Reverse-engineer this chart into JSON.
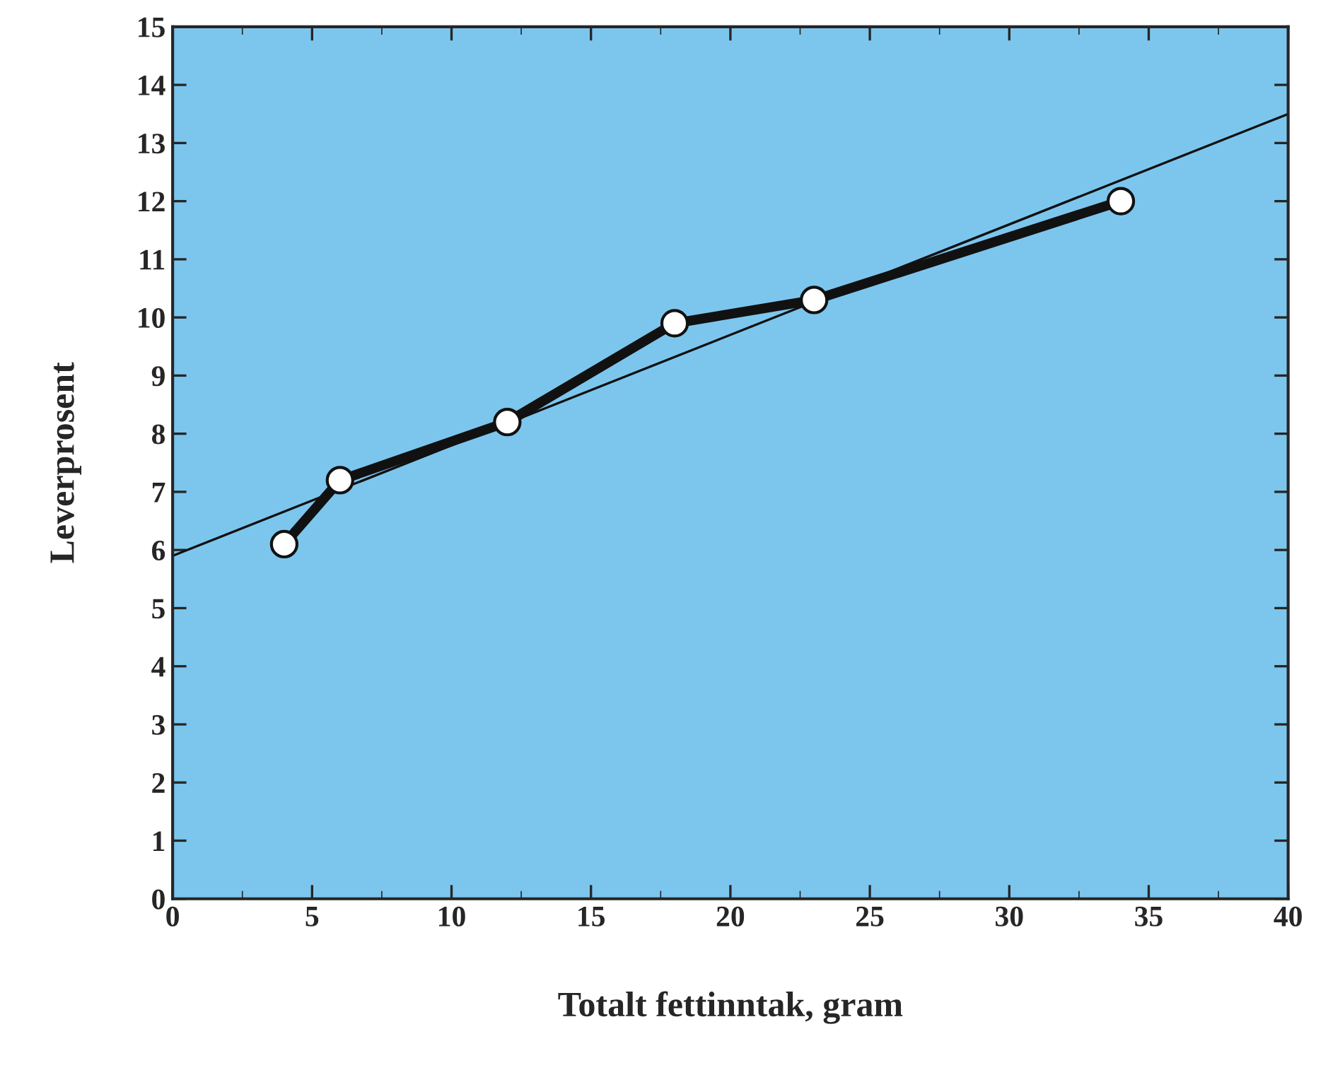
{
  "chart_data": {
    "type": "line",
    "xlabel": "Totalt fettinntak, gram",
    "ylabel": "Leverprosent",
    "xlim": [
      0,
      40
    ],
    "xticks": [
      0,
      5,
      10,
      15,
      20,
      25,
      30,
      35,
      40
    ],
    "ylim": [
      0,
      15
    ],
    "yticks": [
      0,
      1,
      2,
      3,
      4,
      5,
      6,
      7,
      8,
      9,
      10,
      11,
      12,
      13,
      14,
      15
    ],
    "grid": false,
    "series": [
      {
        "x": [
          4,
          6,
          12,
          18,
          23,
          34
        ],
        "values": [
          6.1,
          7.2,
          8.2,
          9.9,
          10.3,
          12.0
        ],
        "color": "#111111",
        "marker": "circle",
        "line_style": "solid"
      },
      {
        "x": [
          0,
          40
        ],
        "values": [
          5.9,
          13.5
        ],
        "color": "#111111",
        "marker": "none",
        "line_style": "solid"
      }
    ]
  }
}
